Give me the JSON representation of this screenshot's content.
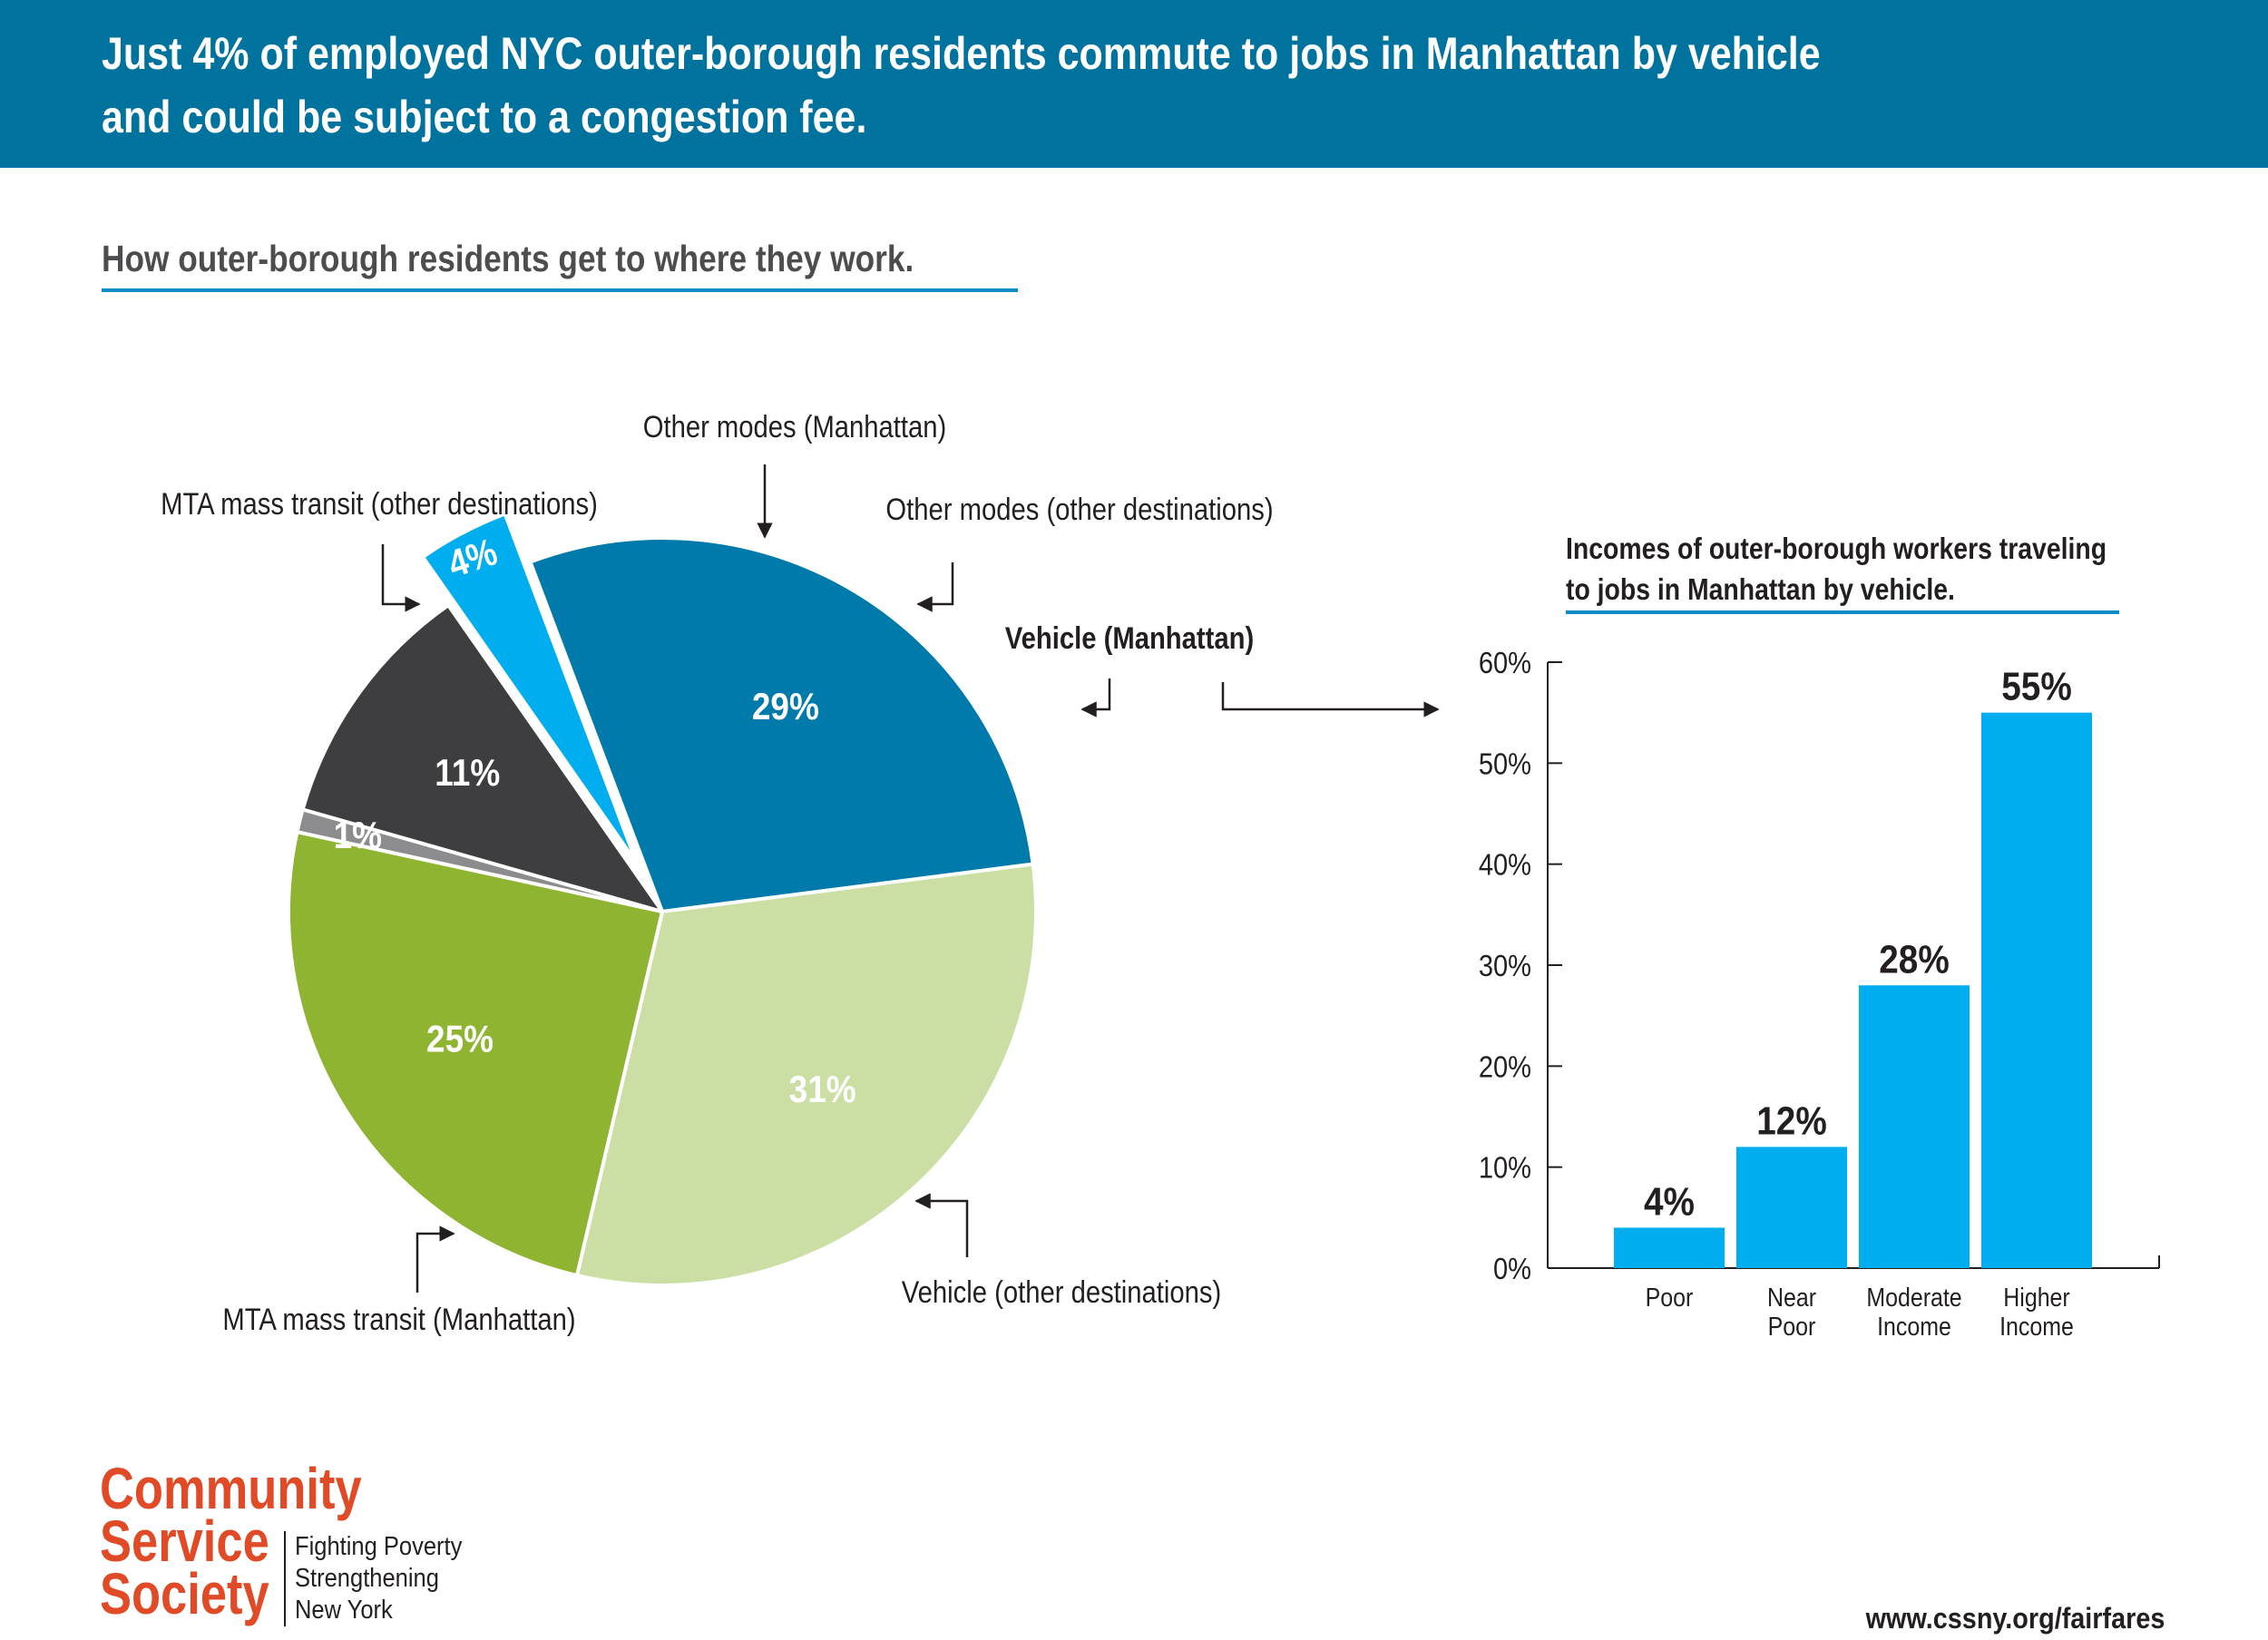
{
  "header": {
    "title": "Just 4% of employed NYC outer-borough residents commute to jobs in Manhattan by vehicle and could be subject to a congestion fee.",
    "subtitle": "How outer-borough residents get to where they work."
  },
  "chart_data": [
    {
      "type": "pie",
      "slices": [
        {
          "label": "Other modes (Manhattan)",
          "value": 1,
          "value_label": "1%",
          "color": "#8c8c8f"
        },
        {
          "label": "Other modes (other destinations)",
          "value": 11,
          "value_label": "11%",
          "color": "#3e3e40"
        },
        {
          "label": "Vehicle (Manhattan)",
          "value": 4,
          "value_label": "4%",
          "color": "#00aeef",
          "exploded": true
        },
        {
          "label": "Vehicle (other destinations)",
          "value": 29,
          "value_label": "29%",
          "color": "#0079ab"
        },
        {
          "label": "MTA mass transit (Manhattan)",
          "value": 31,
          "value_label": "31%",
          "color": "#cbdea3"
        },
        {
          "label": "MTA mass transit (other destinations)",
          "value": 25,
          "value_label": "25%",
          "color": "#8fb431"
        }
      ]
    },
    {
      "type": "bar",
      "title": "Incomes of outer-borough workers traveling to jobs in Manhattan by vehicle.",
      "categories": [
        "Poor",
        "Near Poor",
        "Moderate Income",
        "Higher Income"
      ],
      "category_lines": [
        [
          "Poor"
        ],
        [
          "Near",
          "Poor"
        ],
        [
          "Moderate",
          "Income"
        ],
        [
          "Higher",
          "Income"
        ]
      ],
      "values": [
        4,
        12,
        28,
        55
      ],
      "value_labels": [
        "4%",
        "12%",
        "28%",
        "55%"
      ],
      "ylim": [
        0,
        60
      ],
      "yticks": [
        0,
        10,
        20,
        30,
        40,
        50,
        60
      ],
      "ytick_labels": [
        "0%",
        "10%",
        "20%",
        "30%",
        "40%",
        "50%",
        "60%"
      ],
      "color": "#00aeef",
      "grid": false
    }
  ],
  "footer": {
    "logo_lines": [
      "Community",
      "Service",
      "Society"
    ],
    "tagline_lines": [
      "Fighting Poverty",
      "Strengthening",
      "New York"
    ],
    "url": "www.cssny.org/fairfares"
  }
}
